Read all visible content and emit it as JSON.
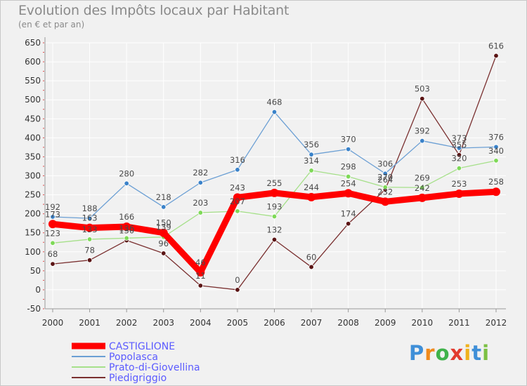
{
  "chart_data": {
    "type": "line",
    "title": "Evolution des Impôts locaux par Habitant",
    "subtitle": "(en € et par an)",
    "xlabel": "",
    "ylabel": "",
    "x": [
      "2000",
      "2001",
      "2002",
      "2003",
      "2004",
      "2005",
      "2006",
      "2007",
      "2008",
      "2009",
      "2010",
      "2011",
      "2012"
    ],
    "ylim": [
      -50,
      650
    ],
    "yticks": [
      -50,
      0,
      50,
      100,
      150,
      200,
      250,
      300,
      350,
      400,
      450,
      500,
      550,
      600,
      650
    ],
    "ytick_labels": [
      "-50",
      "0",
      "50",
      "100",
      "150",
      "200",
      "250",
      "300",
      "350",
      "400",
      "450",
      "500",
      "550",
      "600",
      "650"
    ],
    "series": [
      {
        "name": "CASTIGLIONE",
        "color": "#ff0000",
        "values": [
          173,
          163,
          166,
          150,
          46,
          243,
          255,
          244,
          254,
          232,
          242,
          253,
          258
        ],
        "labels": [
          "173",
          "163",
          "166",
          "150",
          "46",
          "243",
          "255",
          "244",
          "254",
          "232",
          "242",
          "253",
          "258"
        ]
      },
      {
        "name": "Popolasca",
        "color": "#6b9fd4",
        "marker": "#3a82c9",
        "values": [
          192,
          188,
          280,
          218,
          282,
          316,
          468,
          356,
          370,
          306,
          392,
          373,
          376
        ],
        "labels": [
          "192",
          "188",
          "280",
          "218",
          "282",
          "316",
          "468",
          "356",
          "370",
          "306",
          "392",
          "373",
          "376"
        ]
      },
      {
        "name": "Prato-di-Giovellina",
        "color": "#a6e08a",
        "marker": "#7ed957",
        "values": [
          123,
          133,
          136,
          139,
          203,
          207,
          193,
          314,
          298,
          270,
          269,
          320,
          340
        ],
        "labels": [
          "123",
          "133",
          "136",
          "139",
          "203",
          "207",
          "193",
          "314",
          "298",
          "270",
          "269",
          "320",
          "340"
        ]
      },
      {
        "name": "Piedigriggio",
        "color": "#7a3030",
        "marker": "#5a1414",
        "values": [
          68,
          78,
          130,
          96,
          11,
          0,
          132,
          60,
          174,
          264,
          503,
          355,
          616
        ],
        "labels": [
          "68",
          "78",
          "130",
          "96",
          "11",
          "0",
          "132",
          "60",
          "174",
          "264",
          "503",
          "355",
          "616"
        ]
      }
    ],
    "legend_position": "bottom-left"
  },
  "logo": {
    "letters": [
      "P",
      "r",
      "o",
      "x",
      "i",
      "t",
      "i"
    ],
    "colors": [
      "#3f8fd8",
      "#f08a1c",
      "#3fb24a",
      "#e23a2e",
      "#f0b21c",
      "#3f8fd8",
      "#7bc043"
    ]
  }
}
